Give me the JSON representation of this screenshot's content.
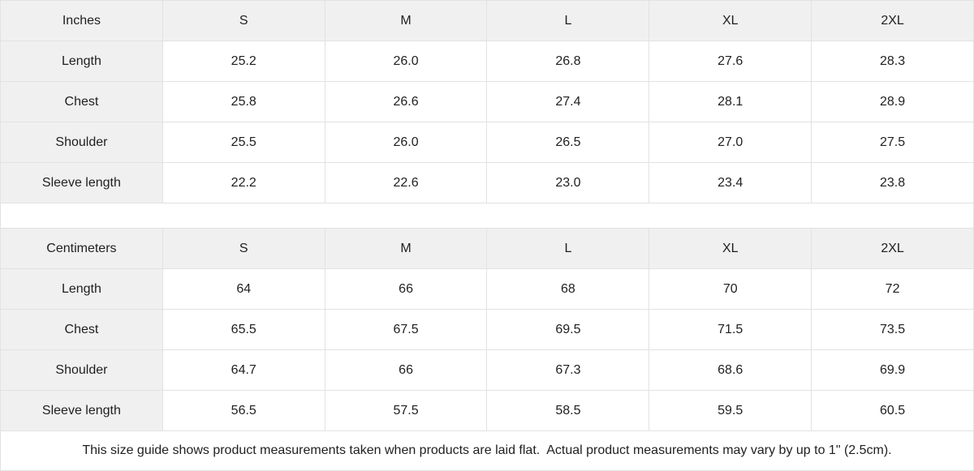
{
  "colors": {
    "header_bg": "#f0f0f0",
    "border": "#e2e2e2",
    "text": "#1f1f1f"
  },
  "chart_data": [
    {
      "type": "table",
      "unit": "Inches",
      "columns": [
        "Inches",
        "S",
        "M",
        "L",
        "XL",
        "2XL"
      ],
      "rows": [
        [
          "Length",
          "25.2",
          "26.0",
          "26.8",
          "27.6",
          "28.3"
        ],
        [
          "Chest",
          "25.8",
          "26.6",
          "27.4",
          "28.1",
          "28.9"
        ],
        [
          "Shoulder",
          "25.5",
          "26.0",
          "26.5",
          "27.0",
          "27.5"
        ],
        [
          "Sleeve length",
          "22.2",
          "22.6",
          "23.0",
          "23.4",
          "23.8"
        ]
      ]
    },
    {
      "type": "table",
      "unit": "Centimeters",
      "columns": [
        "Centimeters",
        "S",
        "M",
        "L",
        "XL",
        "2XL"
      ],
      "rows": [
        [
          "Length",
          "64",
          "66",
          "68",
          "70",
          "72"
        ],
        [
          "Chest",
          "65.5",
          "67.5",
          "69.5",
          "71.5",
          "73.5"
        ],
        [
          "Shoulder",
          "64.7",
          "66",
          "67.3",
          "68.6",
          "69.9"
        ],
        [
          "Sleeve length",
          "56.5",
          "57.5",
          "58.5",
          "59.5",
          "60.5"
        ]
      ]
    }
  ],
  "footer_note": "This size guide shows product measurements taken when products are laid flat.  Actual product measurements may vary by up to 1\" (2.5cm)."
}
